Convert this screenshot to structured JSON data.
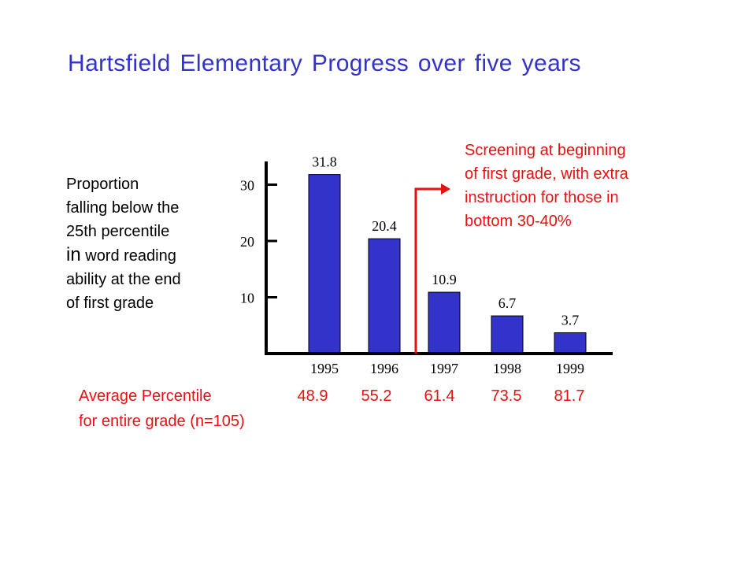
{
  "chart_data": {
    "type": "bar",
    "title": "Hartsfield Elementary Progress over five years",
    "ylabel_lines": [
      {
        "text": "Proportion",
        "big": false
      },
      {
        "text": "falling below the",
        "big": false
      },
      {
        "text": "25th percentile",
        "big": false
      },
      {
        "text": "in",
        "big": true,
        "rest": " word reading"
      },
      {
        "text": "ability at the end",
        "big": false
      },
      {
        "text": "of first grade",
        "big": false
      }
    ],
    "categories": [
      "1995",
      "1996",
      "1997",
      "1998",
      "1999"
    ],
    "values": [
      31.8,
      20.4,
      10.9,
      6.7,
      3.7
    ],
    "data_labels": [
      "31.8",
      "20.4",
      "10.9",
      "6.7",
      "3.7"
    ],
    "yticks": [
      {
        "value": 10,
        "label": "10"
      },
      {
        "value": 20,
        "label": "20"
      },
      {
        "value": 30,
        "label": "30"
      }
    ],
    "ylim": [
      0,
      35
    ],
    "bar_color": "#3333cc",
    "annotation": {
      "text_lines": [
        "Screening at beginning",
        "of first grade, with extra",
        "instruction for those in",
        "bottom 30-40%"
      ],
      "color": "#e81010"
    },
    "average_percentile": {
      "label_lines": [
        "Average Percentile",
        "for entire grade (n=105)"
      ],
      "values": [
        "48.9",
        "55.2",
        "61.4",
        "73.5",
        "81.7"
      ]
    }
  }
}
